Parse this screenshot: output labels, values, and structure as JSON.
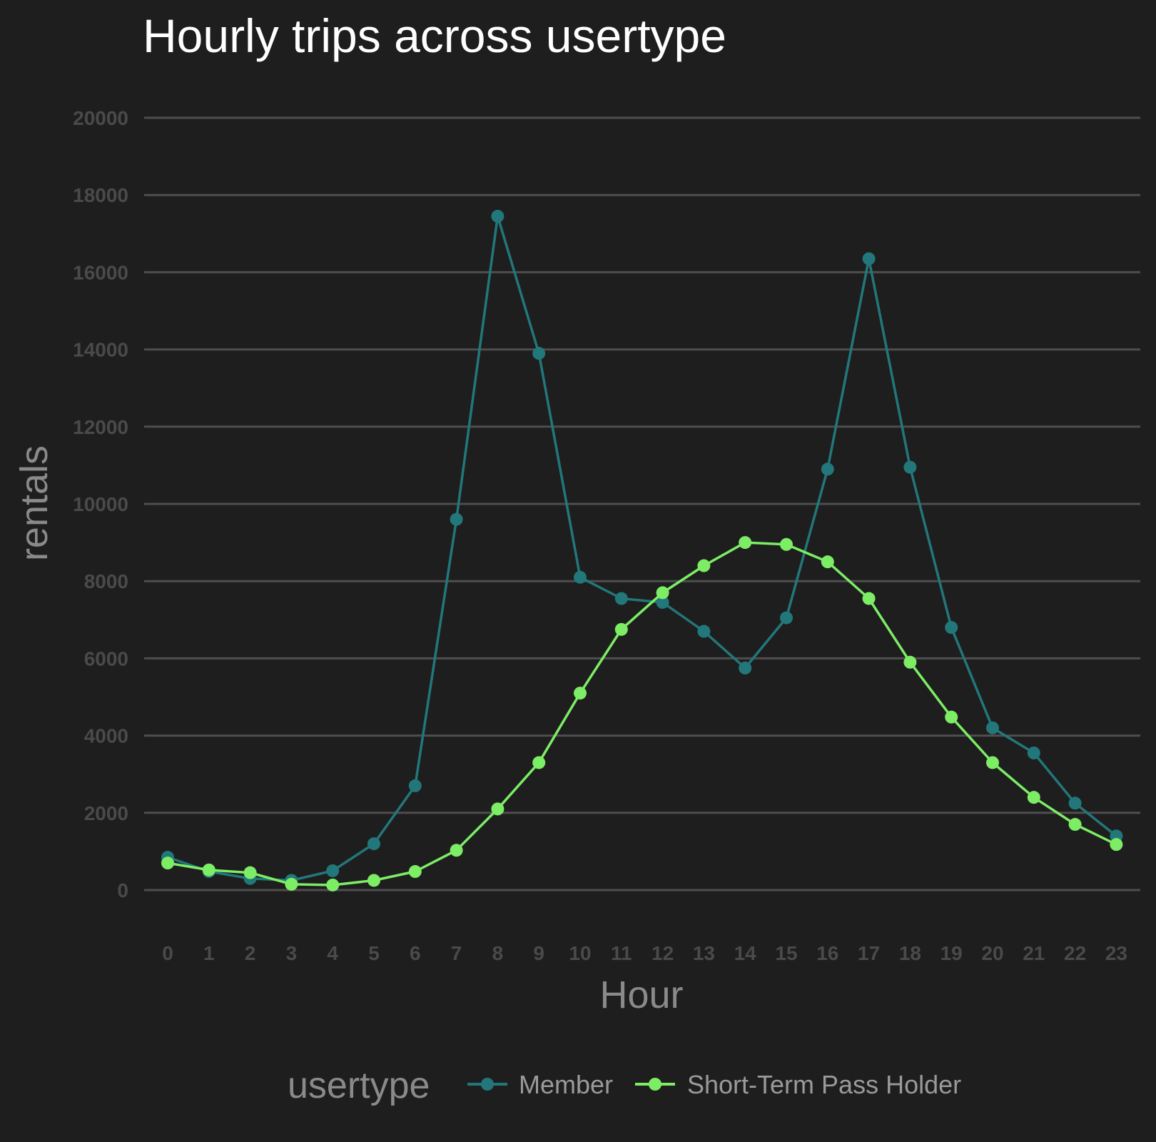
{
  "chart_data": {
    "type": "line",
    "title": "Hourly trips across usertype",
    "xlabel": "Hour",
    "ylabel": "rentals",
    "x": [
      0,
      1,
      2,
      3,
      4,
      5,
      6,
      7,
      8,
      9,
      10,
      11,
      12,
      13,
      14,
      15,
      16,
      17,
      18,
      19,
      20,
      21,
      22,
      23
    ],
    "y_ticks": [
      0,
      2000,
      4000,
      6000,
      8000,
      10000,
      12000,
      14000,
      16000,
      18000,
      20000
    ],
    "ylim": [
      -1000,
      20500
    ],
    "grid": "horizontal",
    "legend": {
      "title": "usertype",
      "position": "bottom"
    },
    "series": [
      {
        "name": "Member",
        "color": "#22777a",
        "values": [
          850,
          480,
          300,
          250,
          500,
          1200,
          2700,
          9600,
          17450,
          13900,
          8100,
          7550,
          7450,
          6700,
          5750,
          7050,
          10900,
          16350,
          10950,
          6800,
          4200,
          3550,
          2250,
          1400
        ]
      },
      {
        "name": "Short-Term Pass Holder",
        "color": "#7ced65",
        "values": [
          700,
          520,
          450,
          150,
          130,
          250,
          480,
          1030,
          2100,
          3300,
          5100,
          6750,
          7700,
          8400,
          9000,
          8950,
          8500,
          7550,
          5900,
          4480,
          3300,
          2400,
          1700,
          1180
        ]
      }
    ]
  }
}
